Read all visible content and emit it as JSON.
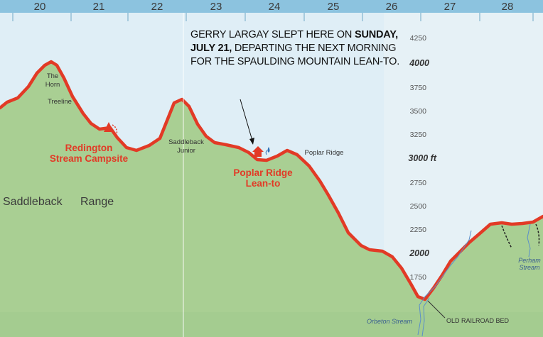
{
  "miles": [
    "20",
    "21",
    "22",
    "23",
    "24",
    "25",
    "26",
    "27",
    "28"
  ],
  "elevation_scale": {
    "labels": [
      "4250",
      "4000",
      "3750",
      "3500",
      "3250",
      "3000 ft",
      "2750",
      "2500",
      "2250",
      "2000",
      "1750"
    ],
    "emphasized": [
      "4000",
      "3000 ft",
      "2000"
    ]
  },
  "peaks": {
    "the_horn_line1": "The",
    "the_horn_line2": "Horn",
    "treeline": "Treeline",
    "saddleback_junior_line1": "Saddleback",
    "saddleback_junior_line2": "Junior",
    "poplar_ridge": "Poplar Ridge"
  },
  "sites": {
    "redington_line1": "Redington",
    "redington_line2": "Stream Campsite",
    "poplar_lean_to_line1": "Poplar Ridge",
    "poplar_lean_to_line2": "Lean-to"
  },
  "range_label_word1": "Saddleback",
  "range_label_word2": "Range",
  "streams": {
    "orbeton": "Orbeton Stream",
    "perham_line1": "Perham",
    "perham_line2": "Stream"
  },
  "old_railroad_bed": "OLD RAILROAD BED",
  "callout": {
    "part1": "GERRY LARGAY SLEPT HERE ON",
    "part2_bold": "SUNDAY, JULY 21,",
    "part3": "DEPARTING THE NEXT MORNING FOR THE SPAULDING MOUNTAIN LEAN-TO."
  },
  "colors": {
    "sky": "#dfeef6",
    "terrain": "#a9cf93",
    "trail": "#e23a26",
    "header": "#8cc3df"
  }
}
